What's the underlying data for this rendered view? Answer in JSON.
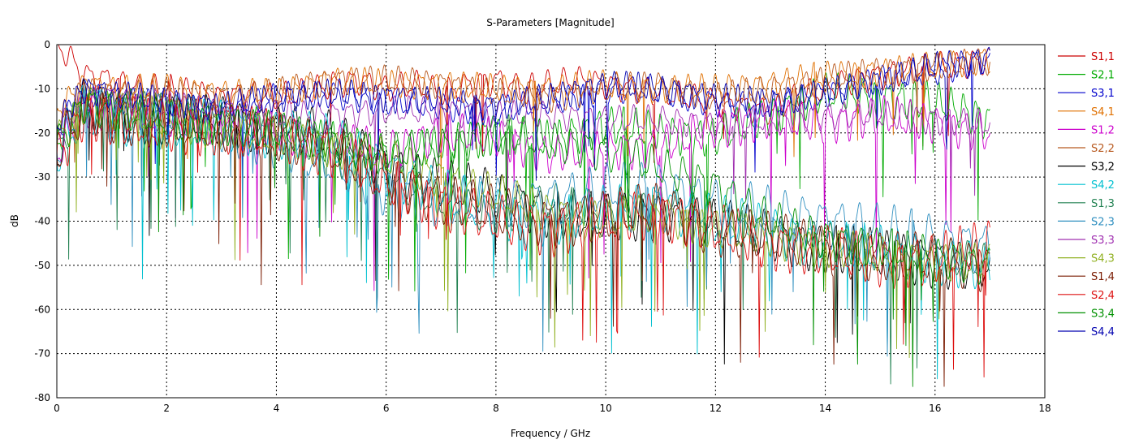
{
  "chart_data": {
    "type": "line",
    "title": "S-Parameters [Magnitude]",
    "xlabel": "Frequency / GHz",
    "ylabel": "dB",
    "xlim": [
      0,
      18
    ],
    "ylim": [
      -80,
      0
    ],
    "xticks": [
      0,
      2,
      4,
      6,
      8,
      10,
      12,
      14,
      16,
      18
    ],
    "yticks": [
      0,
      -10,
      -20,
      -30,
      -40,
      -50,
      -60,
      -70,
      -80
    ],
    "grid": true,
    "legend_position": "right",
    "series": [
      {
        "name": "S1,1",
        "color": "#cc0000",
        "kind": "refl",
        "x": [
          0,
          0.1,
          0.3,
          0.5,
          1,
          1.5,
          2,
          2.5,
          3,
          3.5,
          4,
          4.5,
          5,
          5.5,
          6,
          6.5,
          7,
          7.5,
          8,
          8.5,
          9,
          9.5,
          10,
          10.5,
          11,
          11.5,
          12,
          12.5,
          13,
          13.5,
          14,
          14.5,
          15,
          15.5,
          16,
          16.5,
          17
        ],
        "y": [
          0,
          -1,
          -4,
          -7,
          -8,
          -10,
          -10,
          -11,
          -12,
          -11,
          -12,
          -11,
          -9,
          -8,
          -10,
          -9,
          -11,
          -9,
          -8,
          -10,
          -9,
          -8,
          -9,
          -10,
          -11,
          -12,
          -13,
          -14,
          -15,
          -12,
          -10,
          -8,
          -7,
          -6,
          -5,
          -5,
          -3
        ]
      },
      {
        "name": "S2,1",
        "color": "#00aa00",
        "kind": "trans",
        "x": [
          0,
          0.5,
          1,
          2,
          3,
          4,
          5,
          6,
          7,
          8,
          9,
          10,
          11,
          12,
          13,
          14,
          15,
          16,
          17
        ],
        "y": [
          -22,
          -12,
          -14,
          -16,
          -18,
          -19,
          -22,
          -25,
          -23,
          -20,
          -22,
          -18,
          -20,
          -21,
          -16,
          -11,
          -12,
          -13,
          -17
        ]
      },
      {
        "name": "S3,1",
        "color": "#0000cc",
        "kind": "refl",
        "x": [
          0,
          0.5,
          1,
          2,
          3,
          4,
          5,
          6,
          7,
          8,
          9,
          10,
          11,
          12,
          13,
          14,
          15,
          16,
          17
        ],
        "y": [
          -20,
          -10,
          -12,
          -14,
          -15,
          -12,
          -11,
          -13,
          -14,
          -15,
          -13,
          -10,
          -11,
          -13,
          -14,
          -11,
          -8,
          -6,
          -3
        ]
      },
      {
        "name": "S4,1",
        "color": "#e07000",
        "kind": "refl",
        "x": [
          0,
          0.5,
          1,
          2,
          3,
          4,
          5,
          6,
          7,
          8,
          9,
          10,
          11,
          12,
          13,
          14,
          15,
          16,
          17
        ],
        "y": [
          -15,
          -9,
          -10,
          -10,
          -11,
          -11,
          -8,
          -9,
          -9,
          -10,
          -10,
          -9,
          -10,
          -10,
          -9,
          -7,
          -6,
          -5,
          -3
        ]
      },
      {
        "name": "S1,2",
        "color": "#cc00cc",
        "kind": "trans",
        "x": [
          0,
          0.5,
          1,
          2,
          3,
          4,
          5,
          6,
          7,
          8,
          9,
          10,
          11,
          12,
          13,
          14,
          15,
          16,
          17
        ],
        "y": [
          -25,
          -14,
          -15,
          -17,
          -18,
          -20,
          -22,
          -24,
          -20,
          -21,
          -25,
          -24,
          -23,
          -19,
          -17,
          -18,
          -16,
          -18,
          -20
        ]
      },
      {
        "name": "S2,2",
        "color": "#b85a20",
        "kind": "refl",
        "x": [
          0,
          0.5,
          1,
          2,
          3,
          4,
          5,
          6,
          7,
          8,
          9,
          10,
          11,
          12,
          13,
          14,
          15,
          16,
          17
        ],
        "y": [
          -18,
          -10,
          -11,
          -11,
          -12,
          -11,
          -8,
          -8,
          -9,
          -11,
          -12,
          -10,
          -9,
          -12,
          -10,
          -8,
          -6,
          -5,
          -4
        ]
      },
      {
        "name": "S3,2",
        "color": "#000000",
        "kind": "iso",
        "x": [
          0,
          0.5,
          1,
          2,
          3,
          4,
          5,
          6,
          7,
          8,
          9,
          10,
          11,
          12,
          13,
          14,
          15,
          16,
          17
        ],
        "y": [
          -25,
          -13,
          -15,
          -18,
          -17,
          -19,
          -21,
          -27,
          -32,
          -34,
          -38,
          -40,
          -38,
          -41,
          -43,
          -46,
          -48,
          -49,
          -50
        ]
      },
      {
        "name": "S4,2",
        "color": "#00c0d0",
        "kind": "iso",
        "x": [
          0,
          0.5,
          1,
          2,
          3,
          4,
          5,
          6,
          7,
          8,
          9,
          10,
          11,
          12,
          13,
          14,
          15,
          16,
          17
        ],
        "y": [
          -26,
          -14,
          -16,
          -19,
          -18,
          -20,
          -22,
          -28,
          -34,
          -38,
          -40,
          -38,
          -36,
          -40,
          -42,
          -45,
          -47,
          -48,
          -51
        ]
      },
      {
        "name": "S1,3",
        "color": "#208050",
        "kind": "trans",
        "x": [
          0,
          0.5,
          1,
          2,
          3,
          4,
          5,
          6,
          7,
          8,
          9,
          10,
          11,
          12,
          13,
          14,
          15,
          16,
          17
        ],
        "y": [
          -23,
          -13,
          -14,
          -16,
          -18,
          -20,
          -25,
          -30,
          -36,
          -38,
          -36,
          -38,
          -36,
          -40,
          -43,
          -45,
          -47,
          -48,
          -50
        ]
      },
      {
        "name": "S2,3",
        "color": "#3090c0",
        "kind": "iso",
        "x": [
          0,
          0.5,
          1,
          2,
          3,
          4,
          5,
          6,
          7,
          8,
          9,
          10,
          11,
          12,
          13,
          14,
          15,
          16,
          17
        ],
        "y": [
          -24,
          -14,
          -15,
          -17,
          -19,
          -22,
          -27,
          -33,
          -36,
          -36,
          -35,
          -33,
          -32,
          -36,
          -38,
          -40,
          -42,
          -44,
          -46
        ]
      },
      {
        "name": "S3,3",
        "color": "#a030b0",
        "kind": "refl",
        "x": [
          0,
          0.5,
          1,
          2,
          3,
          4,
          5,
          6,
          7,
          8,
          9,
          10,
          11,
          12,
          13,
          14,
          15,
          16,
          17
        ],
        "y": [
          -20,
          -12,
          -12,
          -14,
          -15,
          -16,
          -16,
          -15,
          -15,
          -16,
          -16,
          -17,
          -17,
          -18,
          -17,
          -16,
          -16,
          -17,
          -18
        ]
      },
      {
        "name": "S4,3",
        "color": "#90b020",
        "kind": "trans",
        "x": [
          0,
          0.5,
          1,
          2,
          3,
          4,
          5,
          6,
          7,
          8,
          9,
          10,
          11,
          12,
          13,
          14,
          15,
          16,
          17
        ],
        "y": [
          -22,
          -13,
          -15,
          -17,
          -19,
          -21,
          -23,
          -26,
          -30,
          -34,
          -38,
          -40,
          -38,
          -42,
          -44,
          -46,
          -48,
          -49,
          -50
        ]
      },
      {
        "name": "S1,4",
        "color": "#7a1a00",
        "kind": "iso",
        "x": [
          0,
          0.5,
          1,
          2,
          3,
          4,
          5,
          6,
          7,
          8,
          9,
          10,
          11,
          12,
          13,
          14,
          15,
          16,
          17
        ],
        "y": [
          -25,
          -14,
          -16,
          -18,
          -19,
          -20,
          -24,
          -30,
          -35,
          -38,
          -40,
          -39,
          -37,
          -42,
          -44,
          -46,
          -48,
          -49,
          -50
        ]
      },
      {
        "name": "S2,4",
        "color": "#dd1010",
        "kind": "iso",
        "x": [
          0,
          0.5,
          1,
          2,
          3,
          4,
          5,
          6,
          7,
          8,
          9,
          10,
          11,
          12,
          13,
          14,
          15,
          16,
          17
        ],
        "y": [
          -26,
          -15,
          -17,
          -19,
          -19,
          -21,
          -24,
          -31,
          -36,
          -40,
          -42,
          -40,
          -38,
          -42,
          -45,
          -47,
          -49,
          -49,
          -45
        ]
      },
      {
        "name": "S3,4",
        "color": "#009000",
        "kind": "trans",
        "x": [
          0,
          0.5,
          1,
          2,
          3,
          4,
          5,
          6,
          7,
          8,
          9,
          10,
          11,
          12,
          13,
          14,
          15,
          16,
          17
        ],
        "y": [
          -23,
          -13,
          -15,
          -17,
          -18,
          -20,
          -22,
          -25,
          -23,
          -20,
          -22,
          -24,
          -28,
          -32,
          -40,
          -44,
          -46,
          -48,
          -50
        ]
      },
      {
        "name": "S4,4",
        "color": "#0000b0",
        "kind": "refl",
        "x": [
          0,
          0.5,
          1,
          2,
          3,
          4,
          5,
          6,
          7,
          8,
          9,
          10,
          11,
          12,
          13,
          14,
          15,
          16,
          17
        ],
        "y": [
          -18,
          -10,
          -11,
          -13,
          -14,
          -12,
          -11,
          -12,
          -13,
          -14,
          -12,
          -9,
          -10,
          -12,
          -13,
          -11,
          -8,
          -5,
          -3
        ]
      }
    ]
  }
}
